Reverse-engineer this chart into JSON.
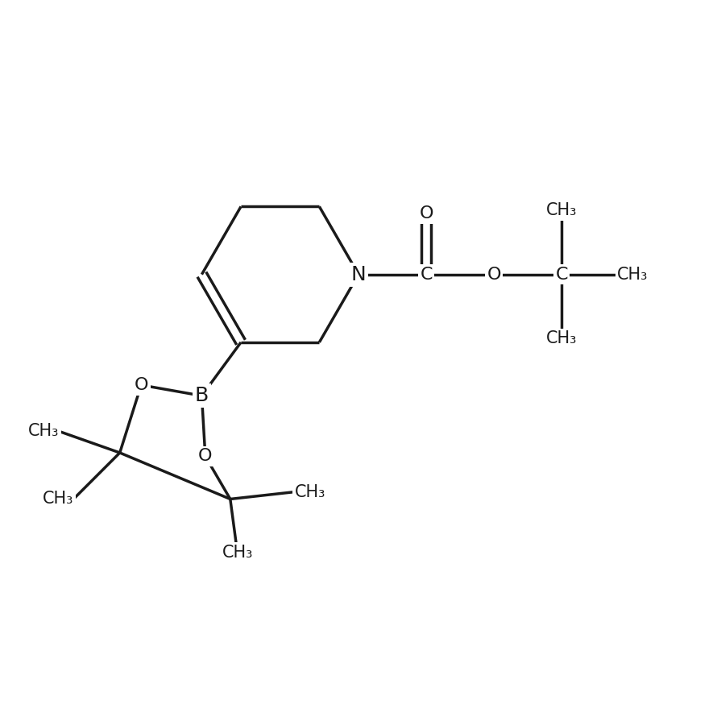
{
  "bg_color": "#ffffff",
  "line_color": "#1a1a1a",
  "line_width": 2.5,
  "font_size": 16,
  "figsize": [
    8.9,
    8.9
  ],
  "dpi": 100,
  "xlim": [
    0,
    10
  ],
  "ylim": [
    0,
    10
  ]
}
